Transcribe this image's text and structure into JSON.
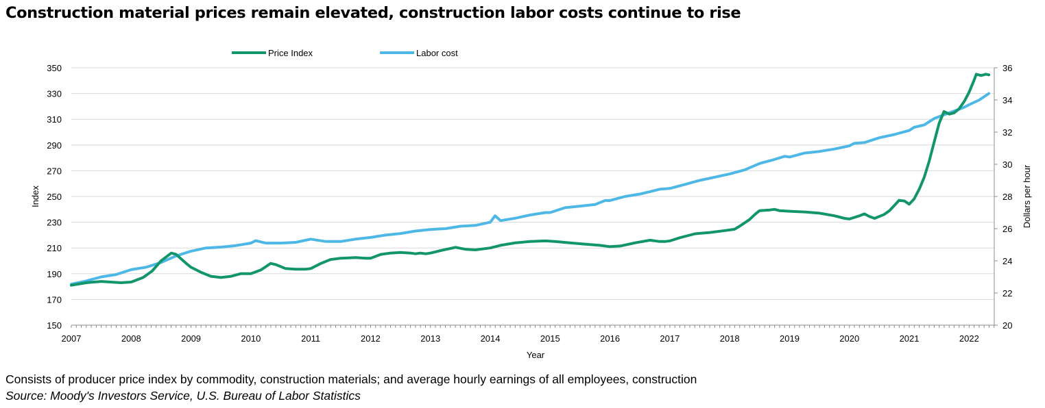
{
  "title": "Construction material prices remain elevated, construction labor costs continue to rise",
  "note": "Consists of producer price index by commodity, construction materials; and average hourly earnings of all employees, construction",
  "source": "Source: Moody's Investors Service, U.S. Bureau of Labor Statistics",
  "chart_data": {
    "type": "line",
    "xlabel": "Year",
    "ylabel": "Index",
    "y2label": "Dollars per hour",
    "xlim": [
      2007,
      2022.33
    ],
    "ylim": [
      150,
      350
    ],
    "y2lim": [
      20,
      36
    ],
    "x_ticks": [
      2007,
      2008,
      2009,
      2010,
      2011,
      2012,
      2013,
      2014,
      2015,
      2016,
      2017,
      2018,
      2019,
      2020,
      2021,
      2022
    ],
    "y_ticks": [
      150,
      170,
      190,
      210,
      230,
      250,
      270,
      290,
      310,
      330,
      350
    ],
    "y2_ticks": [
      20,
      22,
      24,
      26,
      28,
      30,
      32,
      34,
      36
    ],
    "grid": "horizontal",
    "legend": "top-center",
    "series": [
      {
        "name": "Price Index",
        "axis": "left",
        "color": "#13956c",
        "points": [
          [
            2007,
            181
          ],
          [
            2007.25,
            183
          ],
          [
            2007.5,
            184
          ],
          [
            2007.83,
            183
          ],
          [
            2008,
            183.5
          ],
          [
            2008.2,
            187
          ],
          [
            2008.35,
            192
          ],
          [
            2008.5,
            200
          ],
          [
            2008.67,
            206
          ],
          [
            2008.75,
            205
          ],
          [
            2008.92,
            198
          ],
          [
            2009,
            195
          ],
          [
            2009.17,
            191
          ],
          [
            2009.33,
            188
          ],
          [
            2009.5,
            187
          ],
          [
            2009.67,
            188
          ],
          [
            2009.83,
            190
          ],
          [
            2010,
            190
          ],
          [
            2010.17,
            193
          ],
          [
            2010.33,
            198
          ],
          [
            2010.42,
            197
          ],
          [
            2010.58,
            194
          ],
          [
            2010.75,
            193.5
          ],
          [
            2010.92,
            193.5
          ],
          [
            2011,
            194
          ],
          [
            2011.17,
            198
          ],
          [
            2011.33,
            201
          ],
          [
            2011.5,
            202
          ],
          [
            2011.75,
            202.5
          ],
          [
            2011.92,
            202
          ],
          [
            2012,
            202
          ],
          [
            2012.17,
            205
          ],
          [
            2012.33,
            206
          ],
          [
            2012.5,
            206.5
          ],
          [
            2012.67,
            206
          ],
          [
            2012.75,
            205.5
          ],
          [
            2012.83,
            206
          ],
          [
            2012.92,
            205.5
          ],
          [
            2013,
            206
          ],
          [
            2013.17,
            208
          ],
          [
            2013.42,
            210.5
          ],
          [
            2013.58,
            209
          ],
          [
            2013.75,
            208.5
          ],
          [
            2014,
            210
          ],
          [
            2014.17,
            212
          ],
          [
            2014.42,
            214
          ],
          [
            2014.67,
            215
          ],
          [
            2014.92,
            215.5
          ],
          [
            2015.08,
            215
          ],
          [
            2015.33,
            214
          ],
          [
            2015.58,
            213
          ],
          [
            2015.83,
            212
          ],
          [
            2016,
            211
          ],
          [
            2016.17,
            211.5
          ],
          [
            2016.42,
            214
          ],
          [
            2016.67,
            216
          ],
          [
            2016.83,
            215
          ],
          [
            2016.92,
            215
          ],
          [
            2017,
            215.5
          ],
          [
            2017.17,
            218
          ],
          [
            2017.42,
            221
          ],
          [
            2017.67,
            222
          ],
          [
            2017.92,
            223.5
          ],
          [
            2018,
            224
          ],
          [
            2018.08,
            224.5
          ],
          [
            2018.17,
            227
          ],
          [
            2018.33,
            232
          ],
          [
            2018.42,
            236
          ],
          [
            2018.5,
            239
          ],
          [
            2018.67,
            239.5
          ],
          [
            2018.75,
            240
          ],
          [
            2018.83,
            239
          ],
          [
            2019,
            238.5
          ],
          [
            2019.25,
            238
          ],
          [
            2019.5,
            237
          ],
          [
            2019.75,
            235
          ],
          [
            2019.92,
            233
          ],
          [
            2020,
            232.5
          ],
          [
            2020.17,
            235
          ],
          [
            2020.25,
            236.5
          ],
          [
            2020.33,
            234.5
          ],
          [
            2020.42,
            233
          ],
          [
            2020.58,
            236
          ],
          [
            2020.67,
            239
          ],
          [
            2020.75,
            243
          ],
          [
            2020.83,
            247
          ],
          [
            2020.92,
            246.5
          ],
          [
            2021,
            244
          ],
          [
            2021.08,
            248
          ],
          [
            2021.17,
            256
          ],
          [
            2021.25,
            265
          ],
          [
            2021.33,
            277
          ],
          [
            2021.42,
            293
          ],
          [
            2021.5,
            307
          ],
          [
            2021.58,
            316
          ],
          [
            2021.67,
            314
          ],
          [
            2021.75,
            315
          ],
          [
            2021.83,
            318
          ],
          [
            2021.92,
            324
          ],
          [
            2022,
            331
          ],
          [
            2022.08,
            340
          ],
          [
            2022.12,
            345
          ],
          [
            2022.2,
            344
          ],
          [
            2022.28,
            345
          ],
          [
            2022.33,
            344.5
          ]
        ]
      },
      {
        "name": "Labor cost",
        "axis": "right",
        "color": "#4db8e6",
        "points": [
          [
            2007,
            22.55
          ],
          [
            2007.25,
            22.75
          ],
          [
            2007.5,
            23
          ],
          [
            2007.75,
            23.15
          ],
          [
            2008,
            23.45
          ],
          [
            2008.25,
            23.6
          ],
          [
            2008.5,
            23.9
          ],
          [
            2008.75,
            24.3
          ],
          [
            2009,
            24.6
          ],
          [
            2009.25,
            24.8
          ],
          [
            2009.5,
            24.85
          ],
          [
            2009.75,
            24.95
          ],
          [
            2010,
            25.1
          ],
          [
            2010.08,
            25.25
          ],
          [
            2010.25,
            25.1
          ],
          [
            2010.5,
            25.1
          ],
          [
            2010.75,
            25.15
          ],
          [
            2011,
            25.35
          ],
          [
            2011.25,
            25.2
          ],
          [
            2011.5,
            25.2
          ],
          [
            2011.75,
            25.35
          ],
          [
            2012,
            25.45
          ],
          [
            2012.25,
            25.6
          ],
          [
            2012.5,
            25.7
          ],
          [
            2012.75,
            25.85
          ],
          [
            2013,
            25.95
          ],
          [
            2013.25,
            26.0
          ],
          [
            2013.5,
            26.15
          ],
          [
            2013.75,
            26.2
          ],
          [
            2014,
            26.4
          ],
          [
            2014.08,
            26.8
          ],
          [
            2014.17,
            26.5
          ],
          [
            2014.42,
            26.65
          ],
          [
            2014.67,
            26.85
          ],
          [
            2014.92,
            27.0
          ],
          [
            2015,
            27.0
          ],
          [
            2015.25,
            27.3
          ],
          [
            2015.5,
            27.4
          ],
          [
            2015.75,
            27.5
          ],
          [
            2015.92,
            27.75
          ],
          [
            2016,
            27.75
          ],
          [
            2016.25,
            28.0
          ],
          [
            2016.5,
            28.15
          ],
          [
            2016.67,
            28.3
          ],
          [
            2016.83,
            28.45
          ],
          [
            2017,
            28.5
          ],
          [
            2017.25,
            28.75
          ],
          [
            2017.5,
            29.0
          ],
          [
            2017.75,
            29.2
          ],
          [
            2018,
            29.4
          ],
          [
            2018.25,
            29.65
          ],
          [
            2018.5,
            30.05
          ],
          [
            2018.75,
            30.3
          ],
          [
            2018.92,
            30.5
          ],
          [
            2019,
            30.45
          ],
          [
            2019.25,
            30.7
          ],
          [
            2019.5,
            30.8
          ],
          [
            2019.75,
            30.95
          ],
          [
            2020,
            31.15
          ],
          [
            2020.08,
            31.3
          ],
          [
            2020.25,
            31.35
          ],
          [
            2020.5,
            31.65
          ],
          [
            2020.75,
            31.85
          ],
          [
            2021,
            32.1
          ],
          [
            2021.08,
            32.3
          ],
          [
            2021.25,
            32.45
          ],
          [
            2021.42,
            32.85
          ],
          [
            2021.67,
            33.2
          ],
          [
            2021.92,
            33.55
          ],
          [
            2022,
            33.7
          ],
          [
            2022.17,
            34.0
          ],
          [
            2022.33,
            34.4
          ]
        ]
      }
    ]
  }
}
